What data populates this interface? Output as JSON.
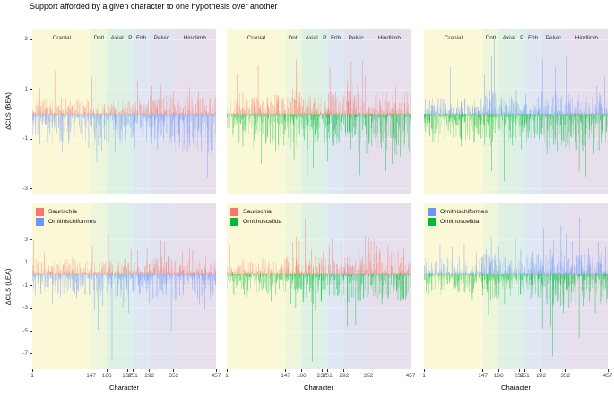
{
  "title": "Support afforded by a given character to one hypothesis over another",
  "chart_data": {
    "type": "bar",
    "title": "Support afforded by a given character to one hypothesis over another",
    "xlabel": "Character",
    "x_range": [
      1,
      457
    ],
    "x_ticks": [
      1,
      147,
      186,
      237,
      251,
      292,
      352,
      457
    ],
    "grid": "faint white major gridlines on tinted anatomical-region bands",
    "legend_position": "top-left inside lower panels",
    "regions": [
      {
        "label": "Cranial",
        "start": 1,
        "end": 147,
        "color": "#FBF8D8"
      },
      {
        "label": "Dntl",
        "start": 147,
        "end": 186,
        "color": "#EDF5DB"
      },
      {
        "label": "Axial",
        "start": 186,
        "end": 237,
        "color": "#DFF1E3"
      },
      {
        "label": "P",
        "start": 237,
        "end": 251,
        "color": "#DCEFEA"
      },
      {
        "label": "Frlb",
        "start": 251,
        "end": 292,
        "color": "#DFE8F2"
      },
      {
        "label": "Pelvic",
        "start": 292,
        "end": 352,
        "color": "#E1E2F0"
      },
      {
        "label": "Hindlimb",
        "start": 352,
        "end": 457,
        "color": "#E7DFEC"
      }
    ],
    "rows": [
      {
        "ylabel": "ΔCLS (BEA)",
        "yticks": [
          -3,
          -1,
          1,
          3
        ],
        "ylim": [
          -3.3,
          3.45
        ]
      },
      {
        "ylabel": "ΔCLS (LEA)",
        "yticks": [
          -7,
          -5,
          -3,
          -1,
          1,
          3
        ],
        "ylim": [
          -8.35,
          6.2
        ]
      }
    ],
    "series_colors": {
      "Saurischia": "#F8766D",
      "Ornithischiformes": "#6D96F6",
      "Ornithoscelida": "#00BA38"
    },
    "panels": [
      {
        "row": 0,
        "col": 0,
        "positive": "Saurischia",
        "negative": "Ornithischiformes",
        "legend": false,
        "seed": 11,
        "pos_amp": 0.7,
        "neg_amp": 1.25,
        "pos_region_mult": [
          1.0,
          0.7,
          0.9,
          0.8,
          0.9,
          1.25,
          1.1
        ],
        "neg_region_mult": [
          1.0,
          1.15,
          1.0,
          0.8,
          0.9,
          1.0,
          1.25
        ],
        "peaks_pos": [
          [
            20,
            1.05
          ],
          [
            57,
            1.75
          ],
          [
            104,
            1.3
          ],
          [
            149,
            1.5
          ],
          [
            262,
            1.35
          ],
          [
            298,
            1.15
          ],
          [
            321,
            1.2
          ],
          [
            352,
            0.95
          ],
          [
            391,
            1.1
          ],
          [
            414,
            0.9
          ]
        ],
        "peaks_neg": [
          [
            76,
            -1.55
          ],
          [
            92,
            -1.2
          ],
          [
            141,
            -1.35
          ],
          [
            161,
            -1.9
          ],
          [
            173,
            -1.5
          ],
          [
            206,
            -1.55
          ],
          [
            256,
            -1.35
          ],
          [
            312,
            -1.4
          ],
          [
            341,
            -1.2
          ],
          [
            367,
            -1.1
          ],
          [
            421,
            -1.5
          ],
          [
            436,
            -2.55
          ],
          [
            446,
            -1.7
          ]
        ]
      },
      {
        "row": 0,
        "col": 1,
        "positive": "Saurischia",
        "negative": "Ornithoscelida",
        "legend": false,
        "seed": 22,
        "pos_amp": 0.95,
        "neg_amp": 1.45,
        "pos_region_mult": [
          0.9,
          1.1,
          0.8,
          0.9,
          1.0,
          1.3,
          1.0
        ],
        "neg_region_mult": [
          1.0,
          1.2,
          1.0,
          0.9,
          1.0,
          1.1,
          1.15
        ],
        "peaks_pos": [
          [
            26,
            1.6
          ],
          [
            49,
            2.2
          ],
          [
            79,
            1.95
          ],
          [
            173,
            2.2
          ],
          [
            177,
            1.6
          ],
          [
            257,
            1.9
          ],
          [
            300,
            1.35
          ],
          [
            310,
            2.1
          ],
          [
            338,
            2.15
          ],
          [
            345,
            1.5
          ],
          [
            420,
            1.1
          ]
        ],
        "peaks_neg": [
          [
            41,
            -1.3
          ],
          [
            87,
            -2.0
          ],
          [
            122,
            -1.5
          ],
          [
            168,
            -1.8
          ],
          [
            201,
            -2.55
          ],
          [
            216,
            -2.2
          ],
          [
            251,
            -1.9
          ],
          [
            331,
            -2.45
          ],
          [
            352,
            -1.9
          ],
          [
            396,
            -2.3
          ],
          [
            412,
            -2.0
          ],
          [
            431,
            -1.7
          ]
        ]
      },
      {
        "row": 0,
        "col": 2,
        "positive": "Ornithischiformes",
        "negative": "Ornithoscelida",
        "legend": false,
        "seed": 33,
        "pos_amp": 0.85,
        "neg_amp": 1.25,
        "pos_region_mult": [
          0.8,
          1.3,
          0.9,
          0.8,
          1.0,
          1.25,
          1.0
        ],
        "neg_region_mult": [
          0.9,
          1.1,
          1.0,
          0.8,
          0.9,
          1.1,
          1.2
        ],
        "peaks_pos": [
          [
            66,
            1.9
          ],
          [
            151,
            1.6
          ],
          [
            169,
            2.35
          ],
          [
            176,
            3.05
          ],
          [
            230,
            1.0
          ],
          [
            295,
            2.2
          ],
          [
            311,
            2.4
          ],
          [
            327,
            1.9
          ],
          [
            356,
            2.3
          ],
          [
            430,
            1.15
          ],
          [
            449,
            1.5
          ]
        ],
        "peaks_neg": [
          [
            93,
            -1.3
          ],
          [
            162,
            -1.5
          ],
          [
            169,
            -2.3
          ],
          [
            200,
            -2.7
          ],
          [
            243,
            -1.4
          ],
          [
            306,
            -1.6
          ],
          [
            332,
            -1.5
          ],
          [
            386,
            -2.3
          ],
          [
            402,
            -2.5
          ],
          [
            422,
            -1.6
          ]
        ]
      },
      {
        "row": 1,
        "col": 0,
        "positive": "Saurischia",
        "negative": "Ornithischiformes",
        "legend": true,
        "seed": 44,
        "pos_amp": 1.35,
        "neg_amp": 2.1,
        "pos_region_mult": [
          1.0,
          0.9,
          1.1,
          0.9,
          1.0,
          1.2,
          1.0
        ],
        "neg_region_mult": [
          0.9,
          1.2,
          1.3,
          0.9,
          1.0,
          1.2,
          1.1
        ],
        "peaks_pos": [
          [
            5,
            3.0
          ],
          [
            31,
            1.9
          ],
          [
            101,
            1.5
          ],
          [
            150,
            2.4
          ],
          [
            190,
            3.5
          ],
          [
            231,
            3.3
          ],
          [
            246,
            2.2
          ],
          [
            262,
            2.1
          ],
          [
            286,
            2.3
          ],
          [
            320,
            3.0
          ],
          [
            329,
            2.9
          ],
          [
            373,
            2.0
          ],
          [
            391,
            2.2
          ],
          [
            399,
            2.1
          ],
          [
            431,
            1.6
          ]
        ],
        "peaks_neg": [
          [
            51,
            -2.6
          ],
          [
            71,
            -2.0
          ],
          [
            111,
            -2.2
          ],
          [
            156,
            -3.1
          ],
          [
            165,
            -4.9
          ],
          [
            176,
            -2.8
          ],
          [
            199,
            -7.6
          ],
          [
            226,
            -3.0
          ],
          [
            240,
            -3.4
          ],
          [
            301,
            -2.2
          ],
          [
            346,
            -5.0
          ],
          [
            361,
            -2.5
          ],
          [
            416,
            -2.6
          ],
          [
            429,
            -3.1
          ],
          [
            450,
            -1.8
          ]
        ]
      },
      {
        "row": 1,
        "col": 1,
        "positive": "Saurischia",
        "negative": "Ornithoscelida",
        "legend": true,
        "seed": 55,
        "pos_amp": 1.55,
        "neg_amp": 2.1,
        "pos_region_mult": [
          0.9,
          1.0,
          1.2,
          0.9,
          1.0,
          1.1,
          1.3
        ],
        "neg_region_mult": [
          0.9,
          1.1,
          1.3,
          0.9,
          1.0,
          1.2,
          1.1
        ],
        "peaks_pos": [
          [
            8,
            2.6
          ],
          [
            165,
            2.8
          ],
          [
            174,
            3.3
          ],
          [
            181,
            2.9
          ],
          [
            196,
            4.9
          ],
          [
            211,
            2.2
          ],
          [
            240,
            2.0
          ],
          [
            255,
            2.6
          ],
          [
            262,
            3.1
          ],
          [
            286,
            2.7
          ],
          [
            330,
            2.0
          ],
          [
            345,
            3.4
          ],
          [
            353,
            3.2
          ],
          [
            359,
            2.9
          ],
          [
            366,
            3.1
          ],
          [
            373,
            2.5
          ],
          [
            381,
            2.2
          ],
          [
            401,
            2.6
          ],
          [
            426,
            2.0
          ],
          [
            441,
            2.3
          ]
        ],
        "peaks_neg": [
          [
            50,
            -2.0
          ],
          [
            111,
            -2.4
          ],
          [
            160,
            -2.6
          ],
          [
            172,
            -3.0
          ],
          [
            191,
            -2.5
          ],
          [
            213,
            -7.7
          ],
          [
            221,
            -3.2
          ],
          [
            236,
            -2.4
          ],
          [
            300,
            -4.6
          ],
          [
            321,
            -4.5
          ],
          [
            341,
            -2.2
          ],
          [
            371,
            -4.3
          ],
          [
            386,
            -2.6
          ],
          [
            401,
            -2.2
          ],
          [
            431,
            -2.4
          ],
          [
            446,
            -2.0
          ]
        ]
      },
      {
        "row": 1,
        "col": 2,
        "positive": "Ornithischiformes",
        "negative": "Ornithoscelida",
        "legend": true,
        "seed": 66,
        "pos_amp": 1.7,
        "neg_amp": 2.2,
        "pos_region_mult": [
          0.9,
          1.1,
          1.0,
          0.9,
          1.1,
          1.3,
          1.1
        ],
        "neg_region_mult": [
          0.8,
          1.2,
          1.0,
          0.9,
          1.0,
          1.3,
          1.2
        ],
        "peaks_pos": [
          [
            41,
            2.6
          ],
          [
            71,
            2.4
          ],
          [
            101,
            2.7
          ],
          [
            131,
            1.9
          ],
          [
            156,
            2.2
          ],
          [
            168,
            3.3
          ],
          [
            186,
            2.4
          ],
          [
            228,
            3.1
          ],
          [
            241,
            2.2
          ],
          [
            271,
            2.0
          ],
          [
            298,
            4.1
          ],
          [
            311,
            4.4
          ],
          [
            323,
            3.0
          ],
          [
            341,
            4.3
          ],
          [
            356,
            3.6
          ],
          [
            369,
            2.9
          ],
          [
            387,
            5.0
          ],
          [
            409,
            2.3
          ],
          [
            433,
            2.8
          ],
          [
            451,
            2.4
          ]
        ],
        "peaks_neg": [
          [
            121,
            -2.3
          ],
          [
            161,
            -3.6
          ],
          [
            181,
            -2.2
          ],
          [
            201,
            -2.6
          ],
          [
            266,
            -2.2
          ],
          [
            295,
            -4.8
          ],
          [
            306,
            -2.6
          ],
          [
            316,
            -4.6
          ],
          [
            320,
            -7.2
          ],
          [
            331,
            -2.4
          ],
          [
            347,
            -3.4
          ],
          [
            361,
            -3.0
          ],
          [
            386,
            -5.6
          ],
          [
            396,
            -2.8
          ],
          [
            411,
            -2.4
          ],
          [
            426,
            -3.4
          ],
          [
            439,
            -2.6
          ]
        ]
      }
    ]
  }
}
